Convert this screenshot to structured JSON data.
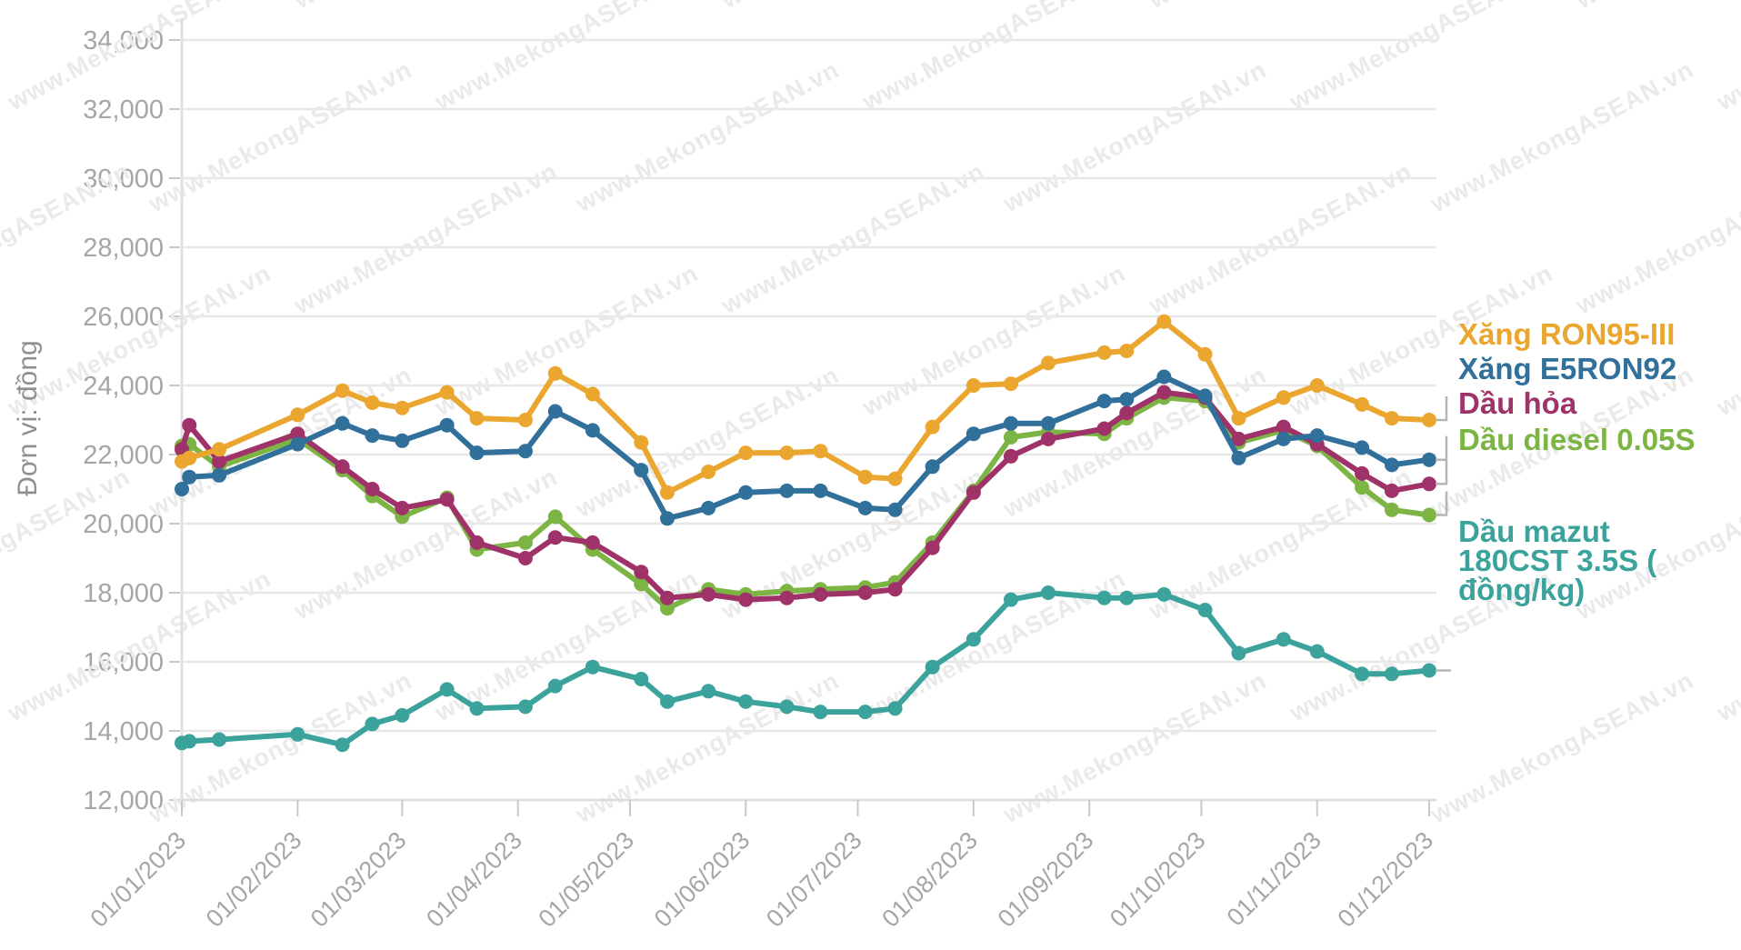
{
  "watermark": "www.MekongASEAN.vn",
  "y_axis": {
    "title": "Đơn vị: đồng",
    "tick_labels": [
      "34,000",
      "32,000",
      "30,000",
      "28,000",
      "26,000",
      "24,000",
      "22,000",
      "20,000",
      "18,000",
      "16,000",
      "14,000",
      "12,000"
    ],
    "min": 12000,
    "max": 34000,
    "step": 2000
  },
  "x_axis": {
    "tick_labels": [
      "01/01/2023",
      "01/02/2023",
      "01/03/2023",
      "01/04/2023",
      "01/05/2023",
      "01/06/2023",
      "01/07/2023",
      "01/08/2023",
      "01/09/2023",
      "01/10/2023",
      "01/11/2023",
      "01/12/2023"
    ]
  },
  "legend": {
    "items": [
      {
        "label": "Xăng RON95-III",
        "lines": [
          "Xăng RON95-III"
        ],
        "color": "#EAA62E"
      },
      {
        "label": "Xăng E5RON92",
        "lines": [
          "Xăng E5RON92"
        ],
        "color": "#30709A"
      },
      {
        "label": "Dầu hỏa",
        "lines": [
          "Dầu hỏa"
        ],
        "color": "#9E3269"
      },
      {
        "label": "Dầu diesel 0.05S",
        "lines": [
          "Dầu diesel 0.05S"
        ],
        "color": "#7CB544"
      },
      {
        "label": "Dầu mazut 180CST 3.5S ( đồng/kg)",
        "lines": [
          "Dầu mazut",
          "180CST 3.5S (",
          "đồng/kg)"
        ],
        "color": "#3BA39C"
      }
    ]
  },
  "chart_data": {
    "type": "line",
    "unit": "đồng",
    "ylim": [
      12000,
      34000
    ],
    "grid": "horizontal",
    "legend_position": "right",
    "x": [
      "01/01",
      "03/01",
      "11/01",
      "01/02",
      "13/02",
      "21/02",
      "01/03",
      "13/03",
      "21/03",
      "03/04",
      "11/04",
      "21/04",
      "04/05",
      "11/05",
      "22/05",
      "01/06",
      "12/06",
      "21/06",
      "03/07",
      "11/07",
      "21/07",
      "01/08",
      "11/08",
      "21/08",
      "05/09",
      "11/09",
      "21/09",
      "02/10",
      "11/10",
      "23/10",
      "01/11",
      "13/11",
      "21/11",
      "01/12"
    ],
    "series": [
      {
        "name": "Xăng RON95-III",
        "color": "#EAA62E",
        "values": [
          21800,
          21900,
          22150,
          23150,
          23850,
          23500,
          23350,
          23800,
          23050,
          23000,
          24350,
          23750,
          22350,
          20900,
          21500,
          22050,
          22050,
          22100,
          21350,
          21300,
          22800,
          24000,
          24050,
          24650,
          24950,
          25000,
          25850,
          24900,
          23050,
          23650,
          24000,
          23450,
          23050,
          23000
        ]
      },
      {
        "name": "Xăng E5RON92",
        "color": "#30709A",
        "values": [
          21000,
          21350,
          21400,
          22300,
          22900,
          22550,
          22400,
          22850,
          22050,
          22100,
          23250,
          22700,
          21550,
          20150,
          20450,
          20900,
          20950,
          20950,
          20450,
          20400,
          21650,
          22600,
          22900,
          22900,
          23550,
          23600,
          24250,
          23700,
          21900,
          22450,
          22550,
          22200,
          21700,
          21850
        ]
      },
      {
        "name": "Dầu hỏa",
        "color": "#9E3269",
        "values": [
          22150,
          22850,
          21800,
          22600,
          21650,
          21000,
          20450,
          20700,
          19450,
          19000,
          19600,
          19450,
          18600,
          17850,
          17950,
          17800,
          17850,
          17950,
          18000,
          18100,
          19300,
          20900,
          21950,
          22450,
          22750,
          23200,
          23800,
          23650,
          22450,
          22800,
          22300,
          21450,
          20950,
          21150
        ]
      },
      {
        "name": "Dầu diesel 0.05S",
        "color": "#7CB544",
        "values": [
          22250,
          22300,
          21650,
          22450,
          21550,
          20800,
          20200,
          20750,
          19250,
          19450,
          20200,
          19250,
          18250,
          17550,
          18100,
          17950,
          18050,
          18100,
          18150,
          18300,
          19450,
          20950,
          22500,
          22650,
          22600,
          23050,
          23650,
          23550,
          22350,
          22700,
          22250,
          21050,
          20400,
          20250
        ]
      },
      {
        "name": "Dầu mazut 180CST 3.5S (đồng/kg)",
        "color": "#3BA39C",
        "values": [
          13650,
          13700,
          13750,
          13900,
          13600,
          14200,
          14450,
          15200,
          14650,
          14700,
          15300,
          15850,
          15500,
          14850,
          15150,
          14850,
          14700,
          14550,
          14550,
          14650,
          15850,
          16650,
          17800,
          18000,
          17850,
          17850,
          17950,
          17500,
          16250,
          16650,
          16300,
          15650,
          15650,
          15750
        ]
      }
    ]
  }
}
